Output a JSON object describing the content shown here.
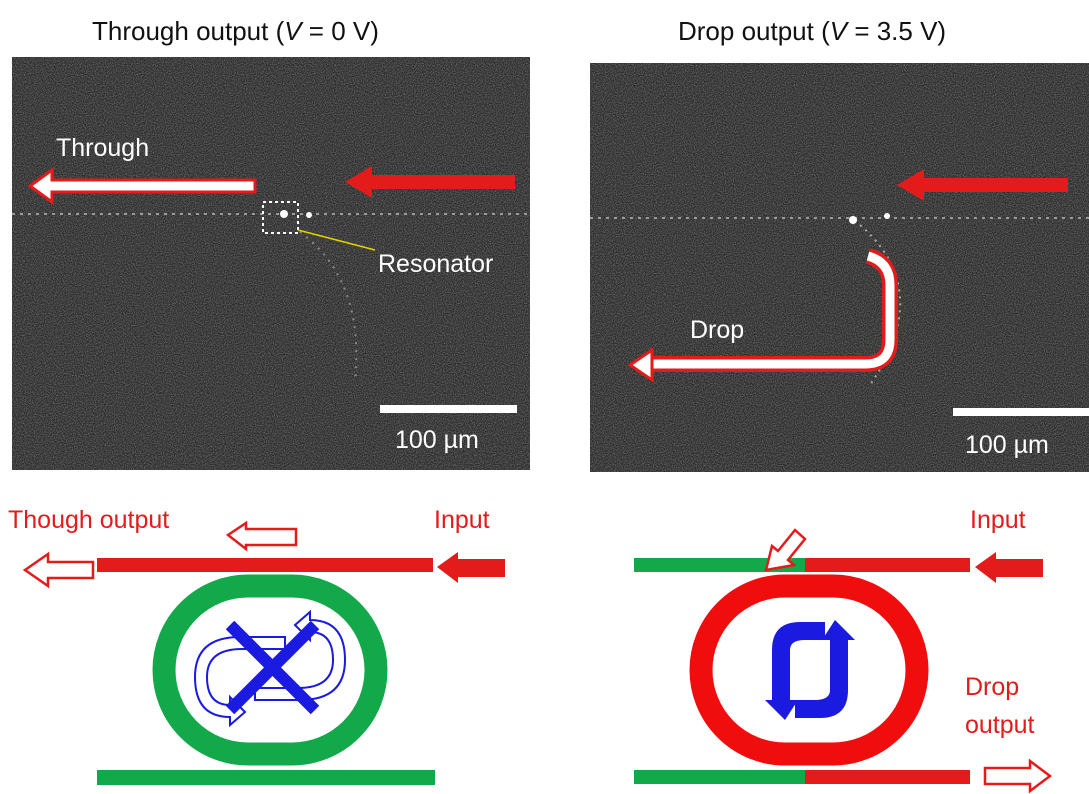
{
  "panels": [
    {
      "title": {
        "before": "Through output   (",
        "var": "V",
        "after": " = 0 V)"
      },
      "image": {
        "arrow_label": "Through",
        "resonator_label": "Resonator",
        "scale_label": "100 µm"
      },
      "schematic": {
        "output_label": "Though output",
        "input_label": "Input"
      }
    },
    {
      "title": {
        "before": "Drop output   (",
        "var": "V",
        "after": " = 3.5 V)"
      },
      "image": {
        "arrow_label": "Drop",
        "scale_label": "100 µm"
      },
      "schematic": {
        "input_label": "Input",
        "drop_label_line1": "Drop",
        "drop_label_line2": "output"
      }
    }
  ]
}
